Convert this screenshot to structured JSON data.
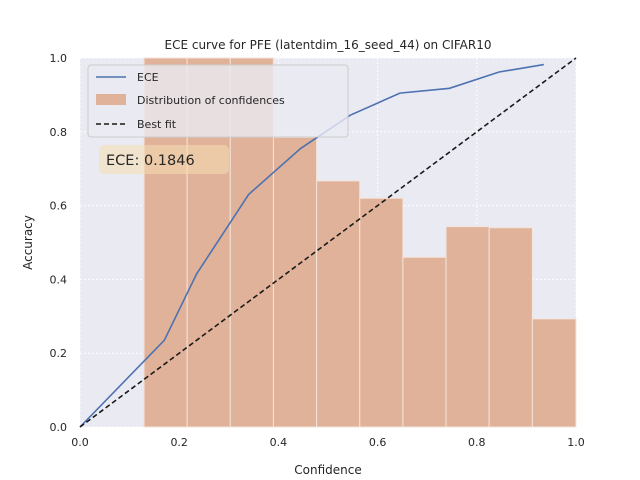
{
  "chart_data": {
    "type": "bar",
    "title": "ECE curve for PFE (latentdim_16_seed_44) on CIFAR10",
    "xlabel": "Confidence",
    "ylabel": "Accuracy",
    "xlim": [
      0,
      1
    ],
    "ylim": [
      0,
      1
    ],
    "xticks": [
      "0.0",
      "0.2",
      "0.4",
      "0.6",
      "0.8",
      "1.0"
    ],
    "yticks": [
      "0.0",
      "0.2",
      "0.4",
      "0.6",
      "0.8",
      "1.0"
    ],
    "grid": true,
    "legend_position": "top-left",
    "histogram": {
      "name": "Distribution of confidences",
      "color": "#e1b29a",
      "bins": [
        {
          "start": 0.129,
          "end": 0.216,
          "height": 1.0
        },
        {
          "start": 0.216,
          "end": 0.303,
          "height": 1.0
        },
        {
          "start": 0.303,
          "end": 0.39,
          "height": 1.0
        },
        {
          "start": 0.39,
          "end": 0.477,
          "height": 0.785
        },
        {
          "start": 0.477,
          "end": 0.564,
          "height": 0.667
        },
        {
          "start": 0.564,
          "end": 0.651,
          "height": 0.62
        },
        {
          "start": 0.651,
          "end": 0.738,
          "height": 0.46
        },
        {
          "start": 0.738,
          "end": 0.825,
          "height": 0.543
        },
        {
          "start": 0.825,
          "end": 0.912,
          "height": 0.54
        },
        {
          "start": 0.912,
          "end": 1.0,
          "height": 0.293
        }
      ]
    },
    "series": [
      {
        "name": "ECE",
        "color": "#4c72b0",
        "x": [
          0.0,
          0.17,
          0.235,
          0.34,
          0.445,
          0.545,
          0.645,
          0.745,
          0.845,
          0.935
        ],
        "y": [
          0.0,
          0.235,
          0.415,
          0.63,
          0.755,
          0.845,
          0.905,
          0.918,
          0.962,
          0.982
        ]
      },
      {
        "name": "Best fit",
        "color": "#1a1a1a",
        "style": "dashed",
        "x": [
          0,
          1
        ],
        "y": [
          0,
          1
        ]
      }
    ],
    "annotation": "ECE: 0.1846"
  }
}
